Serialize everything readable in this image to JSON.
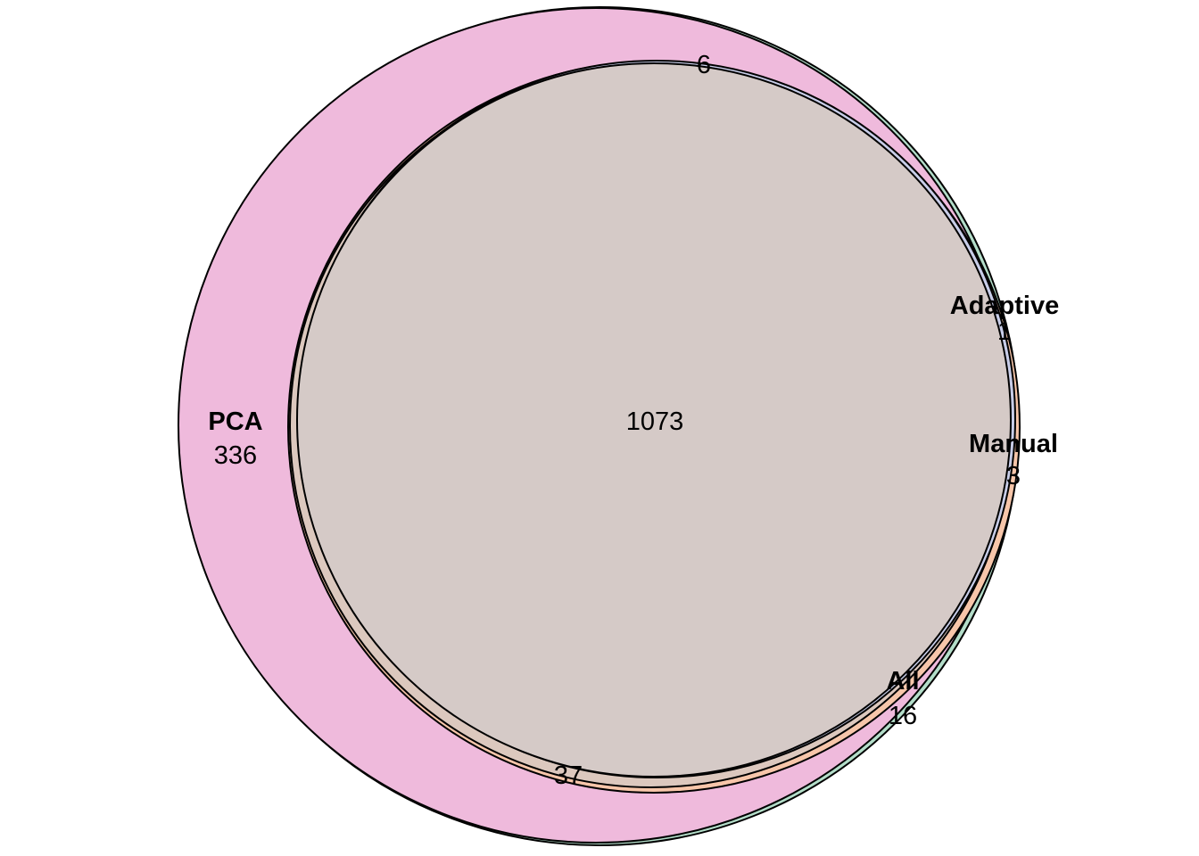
{
  "diagram": {
    "type": "venn",
    "sets": [
      {
        "name": "PCA",
        "color": "#efbadc"
      },
      {
        "name": "Adaptive",
        "color": "#b3ddc9"
      },
      {
        "name": "Manual",
        "color": "#f7c6aa"
      },
      {
        "name": "All",
        "color": "#c8cde8"
      }
    ],
    "counts": {
      "center": "1073",
      "pca_only": "336",
      "top": "6",
      "adaptive": "1",
      "manual": "3",
      "all": "16",
      "bottom": "37"
    }
  }
}
